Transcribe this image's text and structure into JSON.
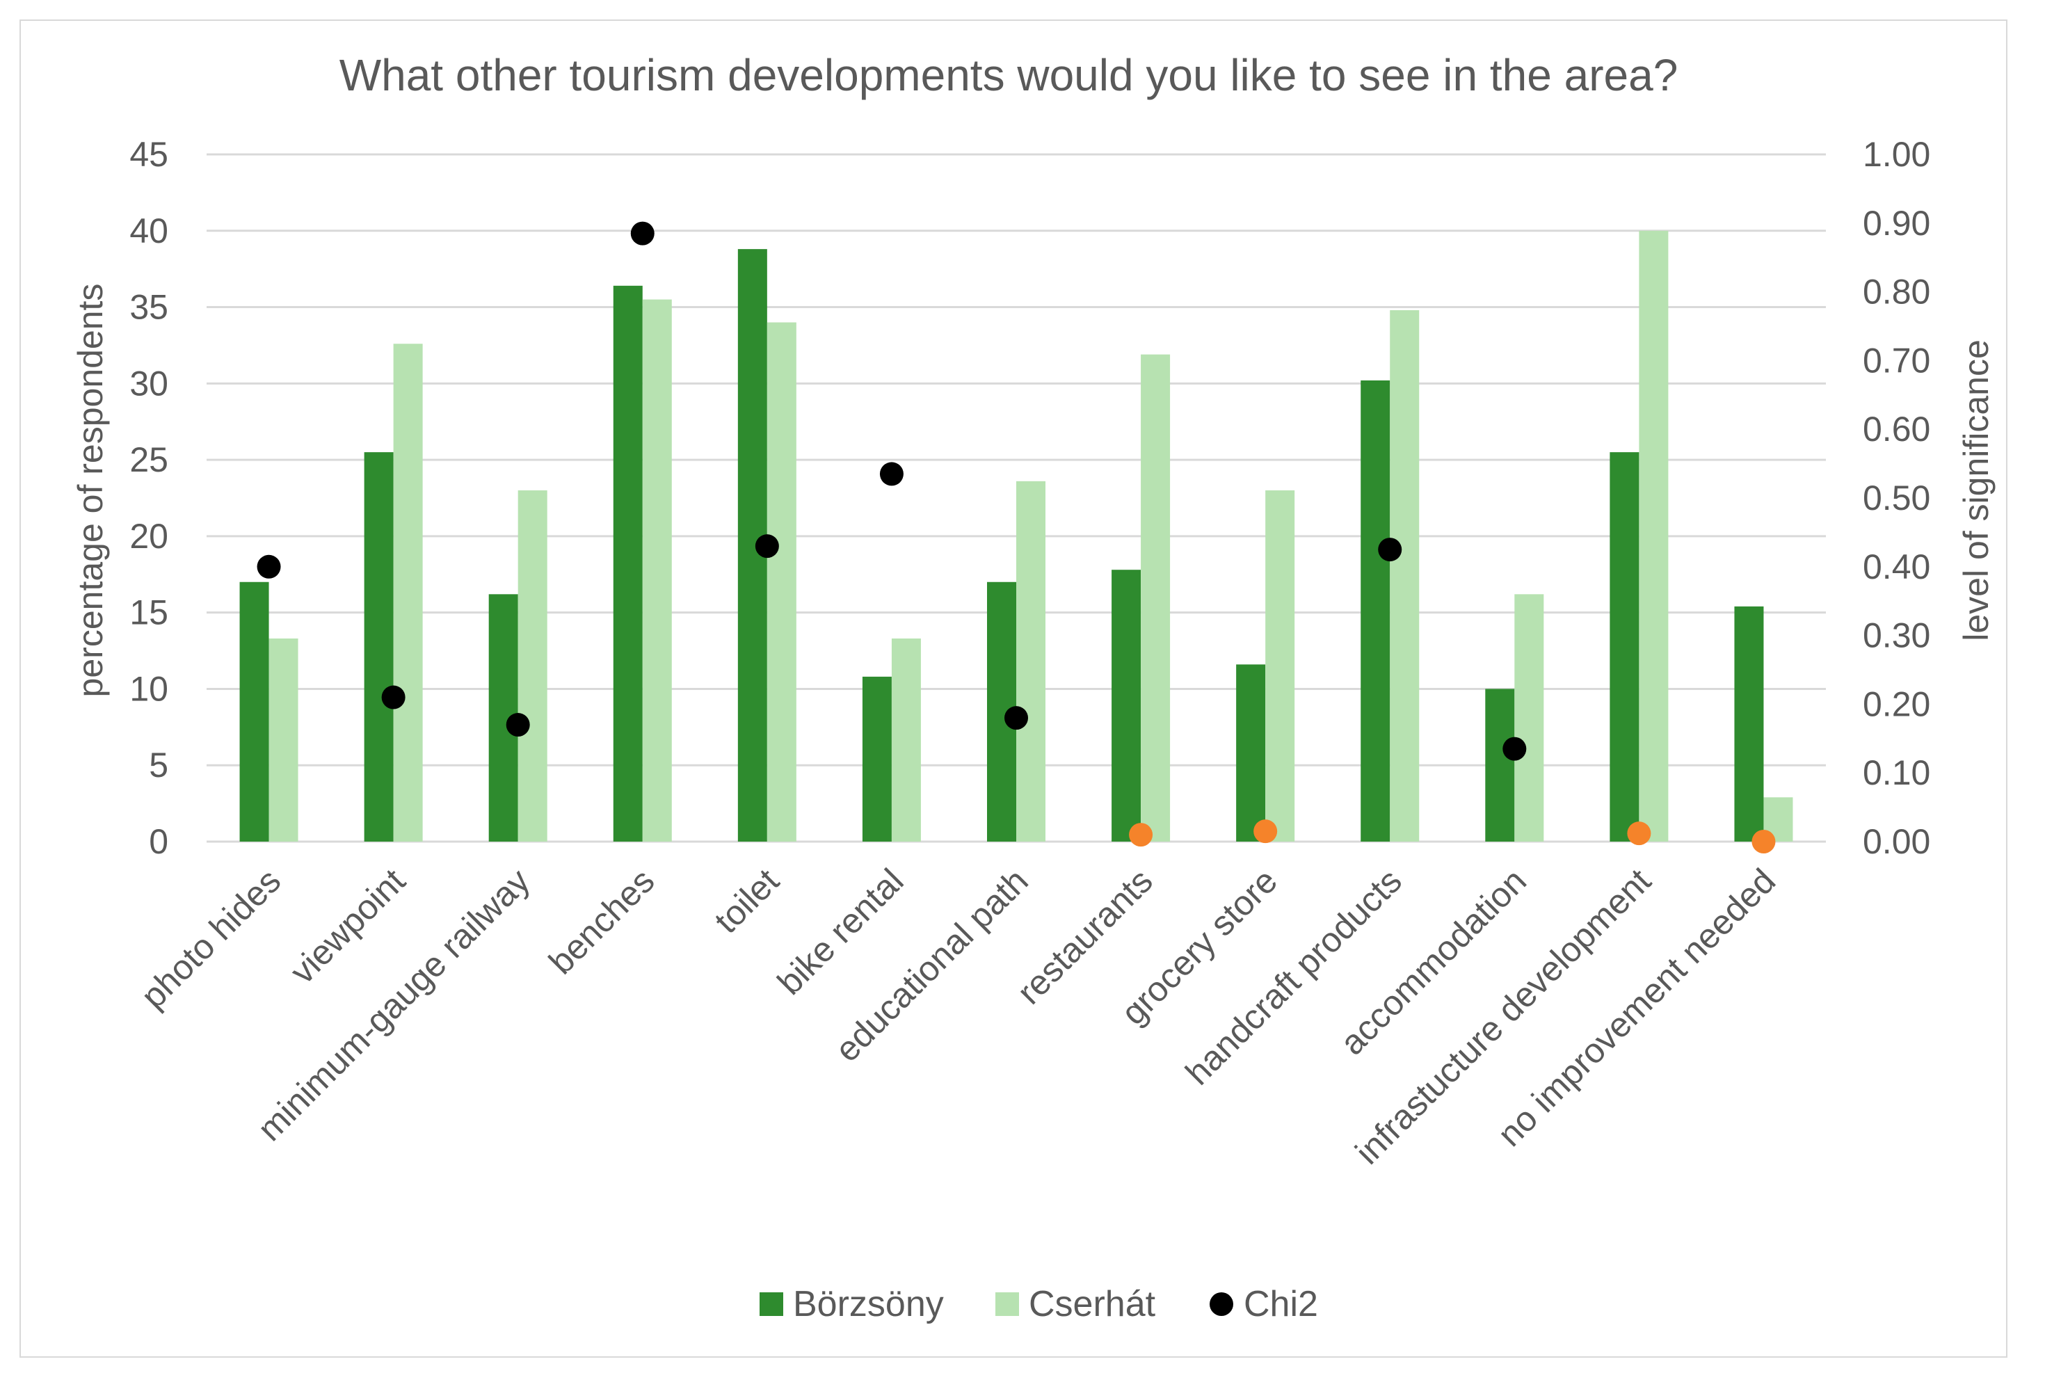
{
  "chart_data": {
    "type": "bar",
    "title": "What other tourism developments would you like to see in the area?",
    "ylabel": "percentage of respondents",
    "y2label": "level of significance",
    "ylim": [
      0,
      45
    ],
    "yticks": [
      0,
      5,
      10,
      15,
      20,
      25,
      30,
      35,
      40,
      45
    ],
    "y2lim": [
      0,
      1.0
    ],
    "y2ticks": [
      "0.00",
      "0.10",
      "0.20",
      "0.30",
      "0.40",
      "0.50",
      "0.60",
      "0.70",
      "0.80",
      "0.90",
      "1.00"
    ],
    "categories": [
      "photo hides",
      "viewpoint",
      "minimum-gauge railway",
      "benches",
      "toilet",
      "bike rental",
      "educational path",
      "restaurants",
      "grocery store",
      "handcraft products",
      "accommodation",
      "infrastucture development",
      "no improvement needed"
    ],
    "series": [
      {
        "name": "Börzsöny",
        "color": "#2e8b2e",
        "values": [
          17.0,
          25.5,
          16.2,
          36.4,
          38.8,
          10.8,
          17.0,
          17.8,
          11.6,
          30.2,
          10.0,
          25.5,
          15.4
        ]
      },
      {
        "name": "Cserhát",
        "color": "#b7e2b1",
        "values": [
          13.3,
          32.6,
          23.0,
          35.5,
          34.0,
          13.3,
          23.6,
          31.9,
          23.0,
          34.8,
          16.2,
          40.0,
          2.9
        ]
      }
    ],
    "scatter": {
      "name": "Chi2",
      "axis": "secondary",
      "color": "#000000",
      "significant_color": "#f5832a",
      "values": [
        0.4,
        0.21,
        0.17,
        0.885,
        0.43,
        0.535,
        0.18,
        0.01,
        0.015,
        0.425,
        0.135,
        0.012,
        0.0
      ],
      "significant": [
        false,
        false,
        false,
        false,
        false,
        false,
        false,
        true,
        true,
        false,
        false,
        true,
        true
      ]
    },
    "legend": "bottom",
    "grid": true
  }
}
